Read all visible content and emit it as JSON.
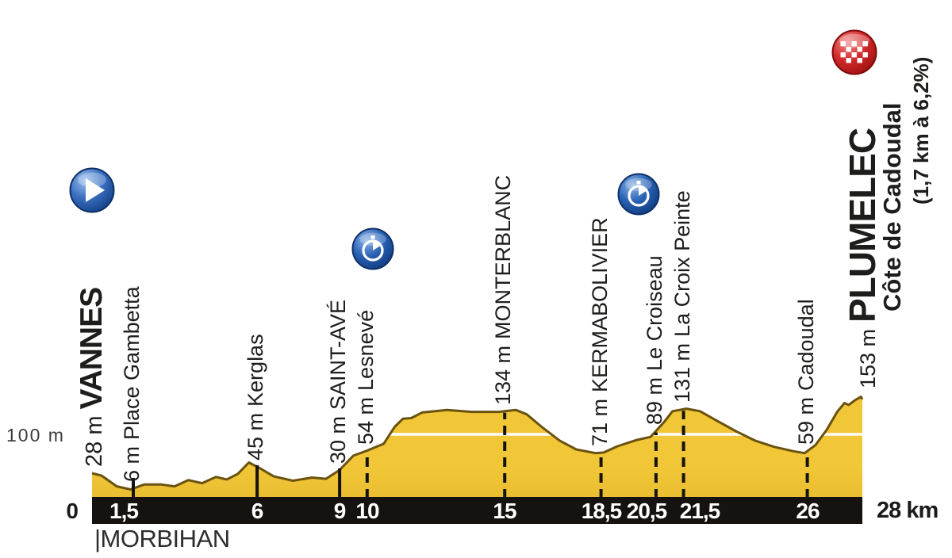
{
  "chart_data": {
    "type": "area",
    "x_unit": "km",
    "y_unit": "m",
    "xlim": [
      0,
      28
    ],
    "y_gridline_m": 100,
    "y_reference_label": "100 m",
    "region_label": "|MORBIHAN",
    "legend_position": "none",
    "grid": "single horizontal reference line at 100 m",
    "x_axis_tick_labels": [
      "0",
      "1,5",
      "6",
      "9",
      "10",
      "15",
      "18,5",
      "20,5",
      "21,5",
      "26",
      "28 km"
    ],
    "waypoints": [
      {
        "km": 0,
        "km_label": "0",
        "elevation_label": "28 m",
        "elevation_m": 28,
        "name": "VANNES",
        "emphasis": "start",
        "icon": "start",
        "marker": "none"
      },
      {
        "km": 1.5,
        "km_label": "1,5",
        "elevation_label": "6 m",
        "elevation_m": 6,
        "name": "Place Gambetta",
        "emphasis": "none",
        "icon": "none",
        "marker": "solid"
      },
      {
        "km": 6,
        "km_label": "6",
        "elevation_label": "45 m",
        "elevation_m": 45,
        "name": "Kerglas",
        "emphasis": "none",
        "icon": "none",
        "marker": "solid"
      },
      {
        "km": 9,
        "km_label": "9",
        "elevation_label": "30 m",
        "elevation_m": 30,
        "name": "SAINT-AVÉ",
        "emphasis": "none",
        "icon": "none",
        "marker": "solid"
      },
      {
        "km": 10,
        "km_label": "10",
        "elevation_label": "54 m",
        "elevation_m": 54,
        "name": "Lesnevé",
        "emphasis": "none",
        "icon": "timer",
        "marker": "dashed"
      },
      {
        "km": 15,
        "km_label": "15",
        "elevation_label": "134 m",
        "elevation_m": 134,
        "name": "MONTERBLANC",
        "emphasis": "none",
        "icon": "none",
        "marker": "dashed"
      },
      {
        "km": 18.5,
        "km_label": "18,5",
        "elevation_label": "71 m",
        "elevation_m": 71,
        "name": "KERMABOLIVIER",
        "emphasis": "none",
        "icon": "none",
        "marker": "dashed"
      },
      {
        "km": 20.5,
        "km_label": "20,5",
        "elevation_label": "89 m",
        "elevation_m": 89,
        "name": "Le Croiseau",
        "emphasis": "none",
        "icon": "timer",
        "marker": "dashed"
      },
      {
        "km": 21.5,
        "km_label": "21,5",
        "elevation_label": "131 m",
        "elevation_m": 131,
        "name": "La Croix Peinte",
        "emphasis": "none",
        "icon": "none",
        "marker": "dashed"
      },
      {
        "km": 26,
        "km_label": "26",
        "elevation_label": "59 m",
        "elevation_m": 59,
        "name": "Cadoudal",
        "emphasis": "none",
        "icon": "none",
        "marker": "dashed"
      },
      {
        "km": 28,
        "km_label": "28 km",
        "elevation_label": "153 m",
        "elevation_m": 153,
        "name": "PLUMELEC",
        "emphasis": "finish",
        "icon": "finish",
        "marker": "none",
        "subtitle": "Côte de Cadoudal",
        "subtitle_detail": "(1,7 km à 6,2%)"
      }
    ],
    "profile_km_m": [
      [
        0,
        38
      ],
      [
        0.35,
        34
      ],
      [
        0.9,
        17
      ],
      [
        1.4,
        12
      ],
      [
        1.9,
        20
      ],
      [
        2.5,
        20
      ],
      [
        3.0,
        17
      ],
      [
        3.5,
        27
      ],
      [
        4.0,
        22
      ],
      [
        4.5,
        32
      ],
      [
        4.9,
        28
      ],
      [
        5.3,
        37
      ],
      [
        5.7,
        55
      ],
      [
        6.1,
        46
      ],
      [
        6.6,
        33
      ],
      [
        7.3,
        26
      ],
      [
        8.0,
        31
      ],
      [
        8.5,
        29
      ],
      [
        9.0,
        43
      ],
      [
        9.5,
        66
      ],
      [
        10.0,
        74
      ],
      [
        10.6,
        85
      ],
      [
        11.0,
        112
      ],
      [
        11.3,
        125
      ],
      [
        11.6,
        126
      ],
      [
        12.0,
        135
      ],
      [
        12.9,
        139
      ],
      [
        13.8,
        136
      ],
      [
        14.8,
        136
      ],
      [
        15.4,
        139
      ],
      [
        15.8,
        132
      ],
      [
        16.4,
        110
      ],
      [
        17.0,
        90
      ],
      [
        17.6,
        76
      ],
      [
        18.3,
        70
      ],
      [
        18.6,
        71
      ],
      [
        19.1,
        81
      ],
      [
        19.8,
        91
      ],
      [
        20.3,
        96
      ],
      [
        20.8,
        120
      ],
      [
        21.1,
        137
      ],
      [
        21.6,
        141
      ],
      [
        22.1,
        137
      ],
      [
        22.7,
        122
      ],
      [
        23.4,
        105
      ],
      [
        24.1,
        90
      ],
      [
        24.8,
        80
      ],
      [
        25.5,
        73
      ],
      [
        25.9,
        70
      ],
      [
        26.3,
        83
      ],
      [
        26.7,
        107
      ],
      [
        27.1,
        137
      ],
      [
        27.35,
        150
      ],
      [
        27.5,
        147
      ],
      [
        27.75,
        155
      ],
      [
        27.95,
        160
      ],
      [
        28,
        156
      ]
    ],
    "colors": {
      "profile_fill": "#F1C637",
      "profile_fill_dark": "#E3B72A",
      "profile_stroke": "#6A5210",
      "axis_bar": "#16120F",
      "marker_line": "#151310",
      "axis_text_on_bar": "#FFFFFF",
      "axis_text_outside": "#1A1A1A",
      "label_text": "#1D1D1B",
      "start_icon_blue": "#2A62B5",
      "timer_icon_blue": "#2A62B5",
      "finish_icon_red": "#C41E22",
      "reference_line": "#FFFFFF"
    }
  }
}
